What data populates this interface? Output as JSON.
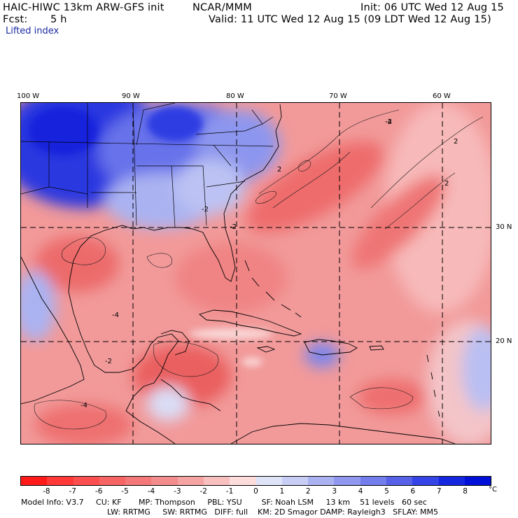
{
  "header": {
    "model": "HAIC-HIWC 13km ARW-GFS init",
    "org": "NCAR/MMM",
    "init": "Init: 06 UTC Wed 12 Aug 15",
    "fcst_label": "Fcst:",
    "fcst_value": "5 h",
    "valid": "Valid: 11 UTC Wed 12 Aug 15 (09 LDT Wed 12 Aug 15)",
    "field": "Lifted index"
  },
  "map": {
    "longitude_labels": [
      "100 W",
      "90 W",
      "80 W",
      "70 W",
      "60 W"
    ],
    "latitude_labels": [
      "30 N",
      "20 N"
    ],
    "contour_labels": [
      "-2",
      "-4",
      "2"
    ]
  },
  "colorbar": {
    "levels": [
      "-8",
      "-7",
      "-6",
      "-5",
      "-4",
      "-3",
      "-2",
      "-1",
      "0",
      "1",
      "2",
      "3",
      "4",
      "5",
      "6",
      "7",
      "8"
    ],
    "unit": "°C",
    "colors": [
      "#ff1a1a",
      "#ff3838",
      "#fb4f4f",
      "#f76464",
      "#f47878",
      "#f38c8c",
      "#f5a3a3",
      "#f8bfbf",
      "#fddcdc",
      "#dfe3f8",
      "#c8cdf5",
      "#aab2f1",
      "#8f98ee",
      "#737deb",
      "#5661e8",
      "#3444e7",
      "#1526e0",
      "#0010d8"
    ]
  },
  "model_info": {
    "line1": "Model Info: V3.7     CU: KF       MP: Thompson     PBL: YSU        SF: Noah LSM     13 km    51 levels   60 sec",
    "line2": "LW: RRTMG     SW: RRTMG   DIFF: full    KM: 2D Smagor DAMP: Rayleigh3   SFLAY: MM5"
  }
}
